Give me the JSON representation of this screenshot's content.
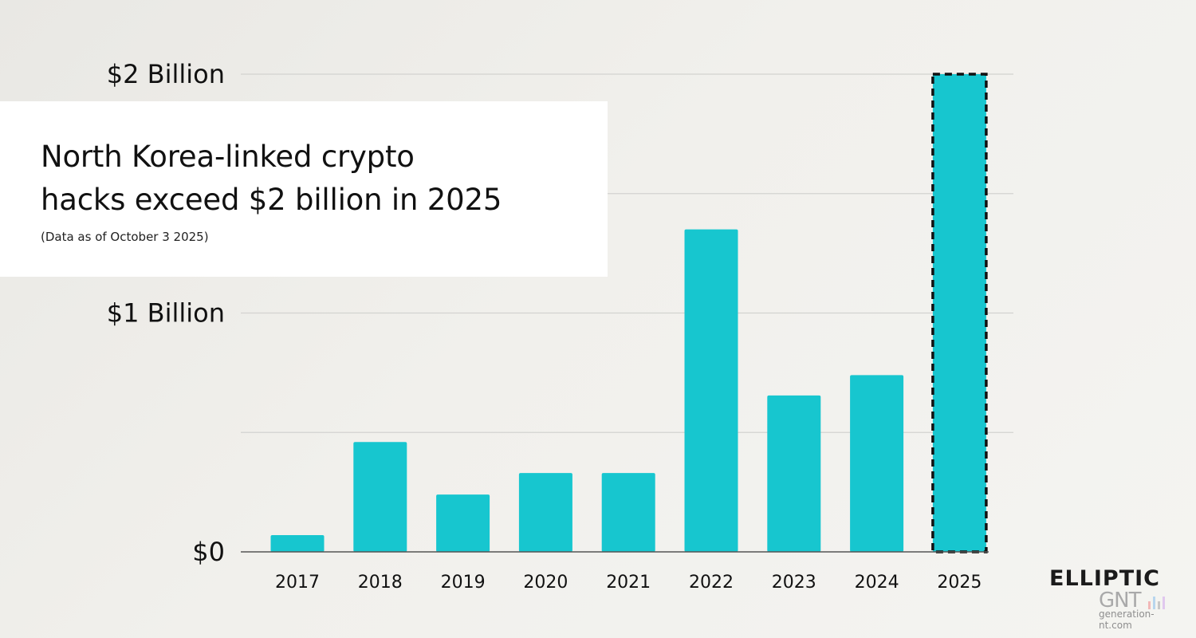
{
  "title_lines": [
    "North Korea-linked crypto",
    "hacks exceed $2 billion in 2025"
  ],
  "subtitle": "(Data as of October 3 2025)",
  "chart_data": {
    "type": "bar",
    "title": "North Korea-linked crypto hacks exceed $2 billion in 2025",
    "subtitle": "(Data as of October 3 2025)",
    "categories": [
      "2017",
      "2018",
      "2019",
      "2020",
      "2021",
      "2022",
      "2023",
      "2024",
      "2025"
    ],
    "values": [
      0.07,
      0.46,
      0.24,
      0.33,
      0.33,
      1.35,
      0.655,
      0.74,
      2.0
    ],
    "unit": "billion USD",
    "ylim": [
      0,
      2
    ],
    "y_ticks": [
      {
        "value": 0,
        "label": "$0"
      },
      {
        "value": 1,
        "label": "$1 Billion"
      },
      {
        "value": 2,
        "label": "$2 Billion"
      }
    ],
    "gridlines": [
      0.5,
      1,
      1.5,
      2
    ],
    "grid": true,
    "xlabel": "",
    "ylabel": "",
    "highlight": {
      "category": "2025",
      "style": "dashed-outline"
    }
  },
  "colors": {
    "bar": "#17c6cf",
    "highlight_border": "#111111",
    "grid": "#d3d3d0"
  },
  "logo": {
    "brand": "ELLIPTIC"
  },
  "watermark": {
    "name": "GNT",
    "url": "generation-nt.com",
    "bar_colors": [
      "#f2b8b8",
      "#b8d6ee",
      "#c8c8c8",
      "#e0c8ee"
    ]
  }
}
